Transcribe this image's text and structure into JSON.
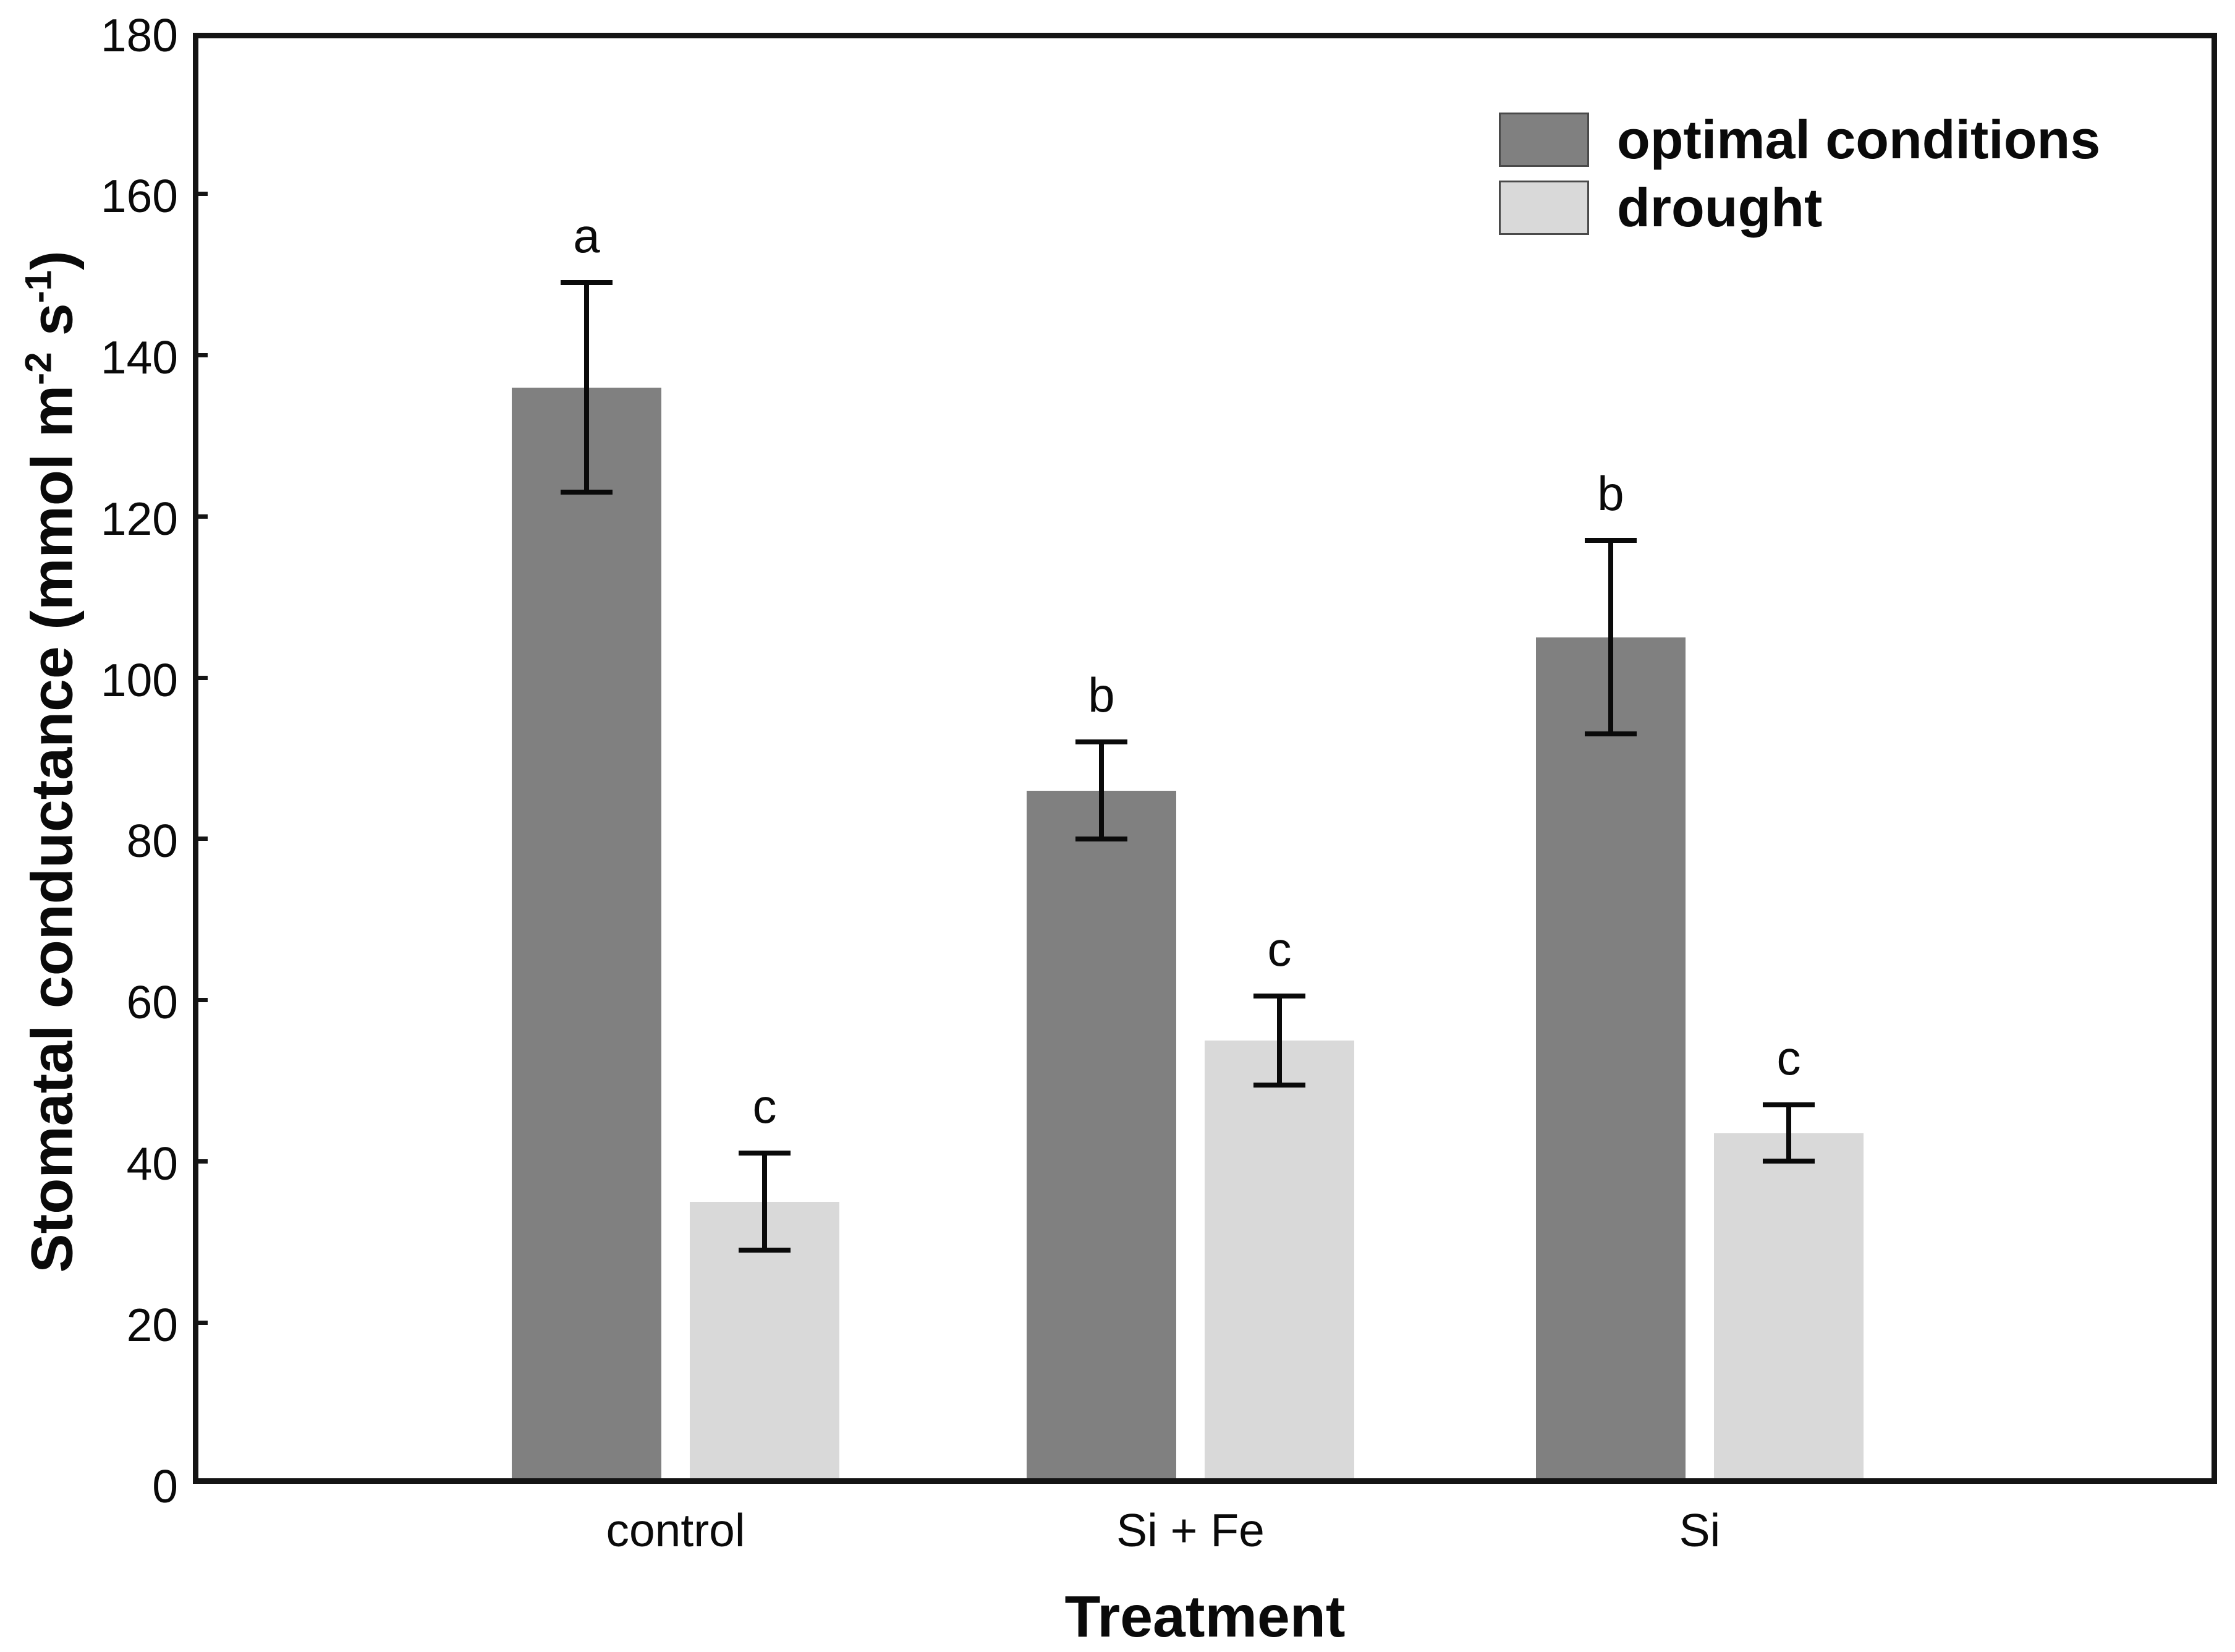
{
  "figure": {
    "background_color": "#ffffff",
    "axis_color": "#141414",
    "text_color": "#0a0a0a"
  },
  "chart_data": {
    "type": "bar",
    "title": "",
    "xlabel": "Treatment",
    "ylabel": "Stomatal conductance (mmol m-2 s-1)",
    "ylabel_rich": {
      "pre": "Stomatal conductance (mmol m",
      "sup1": "-2",
      "mid": " s",
      "sup2": "-1",
      "post": ")"
    },
    "categories": [
      "control",
      "Si + Fe",
      "Si"
    ],
    "series": [
      {
        "name": "optimal conditions",
        "color": "#808080",
        "values": [
          136,
          86,
          105
        ],
        "errors": [
          13,
          6,
          12
        ],
        "sig_letters": [
          "a",
          "b",
          "b"
        ]
      },
      {
        "name": "drought",
        "color": "#d9d9d9",
        "values": [
          35,
          55,
          43.5
        ],
        "errors": [
          6,
          5.5,
          3.5
        ],
        "sig_letters": [
          "c",
          "c",
          "c"
        ]
      }
    ],
    "ylim": [
      0,
      180
    ],
    "ytick_step": 20,
    "yticks": [
      0,
      20,
      40,
      60,
      80,
      100,
      120,
      140,
      160,
      180
    ],
    "grid": false,
    "legend_position": "top-right",
    "error_bar_style": "capped, plus-minus"
  }
}
